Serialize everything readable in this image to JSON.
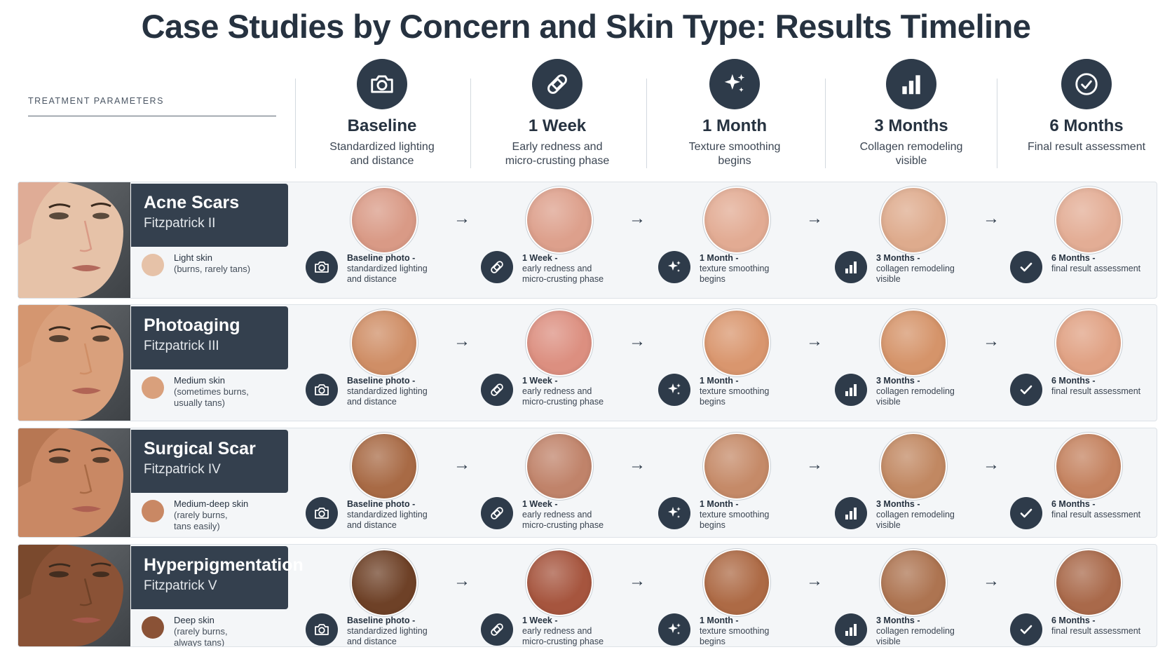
{
  "title": "Case Studies by Concern and Skin Type: Results Timeline",
  "params_label": "TREATMENT PARAMETERS",
  "stages": [
    {
      "icon": "camera-icon",
      "title": "Baseline",
      "sub1": "Standardized lighting",
      "sub2": "and distance"
    },
    {
      "icon": "bandage-icon",
      "title": "1 Week",
      "sub1": "Early redness and",
      "sub2": "micro-crusting phase"
    },
    {
      "icon": "sparkle-icon",
      "title": "1 Month",
      "sub1": "Texture smoothing",
      "sub2": "begins"
    },
    {
      "icon": "bar-chart-icon",
      "title": "3 Months",
      "sub1": "Collagen remodeling",
      "sub2": "visible"
    },
    {
      "icon": "check-circle-icon",
      "title": "6 Months",
      "sub1": "Final result assessment",
      "sub2": ""
    }
  ],
  "cells": [
    {
      "lead": "Baseline photo -",
      "l2": "standardized lighting",
      "l3": "and distance"
    },
    {
      "lead": "1 Week -",
      "l2": "early redness and",
      "l3": "micro-crusting phase"
    },
    {
      "lead": "1 Month -",
      "l2": "texture smoothing",
      "l3": "begins"
    },
    {
      "lead": "3 Months -",
      "l2": "collagen remodeling",
      "l3": "visible"
    },
    {
      "lead": "6 Months -",
      "l2": "final result assessment",
      "l3": ""
    }
  ],
  "arrow": "→",
  "rows": [
    {
      "concern": "Acne Scars",
      "fitzpatrick": "Fitzpatrick II",
      "skin_main": "Light skin",
      "skin_note1": "(burns, rarely tans)",
      "skin_note2": "",
      "swatch": "#e6c2a8",
      "tones": [
        "#d99a86",
        "#dda08c",
        "#e2ab93",
        "#deab8d",
        "#e3ad95"
      ]
    },
    {
      "concern": "Photoaging",
      "fitzpatrick": "Fitzpatrick III",
      "skin_main": "Medium skin",
      "skin_note1": "(sometimes burns,",
      "skin_note2": "usually tans)",
      "swatch": "#d9a07c",
      "tones": [
        "#cf8e66",
        "#dc8f80",
        "#d9966e",
        "#d5946a",
        "#e0a183"
      ]
    },
    {
      "concern": "Surgical Scar",
      "fitzpatrick": "Fitzpatrick IV",
      "skin_main": "Medium-deep skin",
      "skin_note1": "(rarely burns,",
      "skin_note2": "tans easily)",
      "swatch": "#c98864",
      "tones": [
        "#a86a45",
        "#c0836a",
        "#c58a68",
        "#c18862",
        "#c4825f"
      ]
    },
    {
      "concern": "Hyperpigmentation",
      "fitzpatrick": "Fitzpatrick V",
      "skin_main": "Deep skin",
      "skin_note1": "(rarely burns,",
      "skin_note2": "always tans)",
      "swatch": "#8a5236",
      "tones": [
        "#6e4127",
        "#a6553e",
        "#ad6a45",
        "#ad7451",
        "#a9694a"
      ]
    }
  ]
}
